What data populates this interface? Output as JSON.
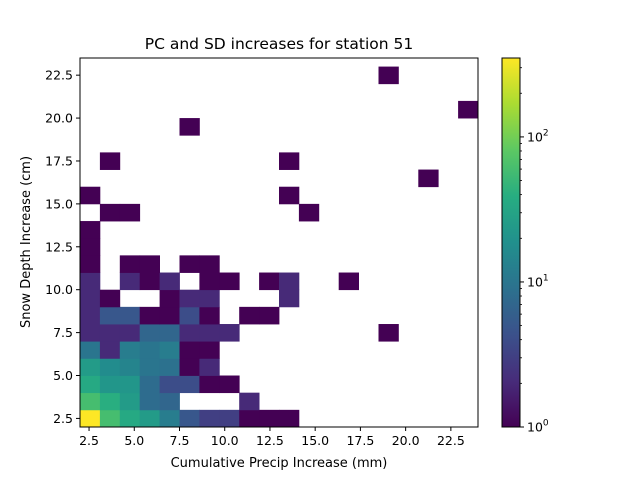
{
  "chart_data": {
    "type": "heatmap",
    "title": "PC and SD increases for station 51",
    "xlabel": "Cumulative Precip Increase (mm)",
    "ylabel": "Snow Depth Increase (cm)",
    "xlim": [
      2.0,
      24.0
    ],
    "ylim": [
      2.0,
      23.5
    ],
    "xticks": [
      "2.5",
      "5.0",
      "7.5",
      "10.0",
      "12.5",
      "15.0",
      "17.5",
      "20.0",
      "22.5"
    ],
    "yticks": [
      "2.5",
      "5.0",
      "7.5",
      "10.0",
      "12.5",
      "15.0",
      "17.5",
      "20.0",
      "22.5"
    ],
    "bin_width_x": 1.1,
    "bin_width_y": 1.0,
    "colorscale": "viridis",
    "color_scale_type": "log",
    "color_range": [
      1,
      350
    ],
    "colorbar_ticks": [
      {
        "value": 1,
        "label": "10",
        "exp": "0"
      },
      {
        "value": 10,
        "label": "10",
        "exp": "1"
      },
      {
        "value": 100,
        "label": "10",
        "exp": "2"
      }
    ],
    "bins": [
      [
        2.55,
        2.5,
        350
      ],
      [
        3.65,
        2.5,
        60
      ],
      [
        4.75,
        2.5,
        35
      ],
      [
        5.85,
        2.5,
        25
      ],
      [
        6.95,
        2.5,
        12
      ],
      [
        8.05,
        2.5,
        5
      ],
      [
        9.15,
        2.5,
        3
      ],
      [
        10.25,
        2.5,
        3
      ],
      [
        11.35,
        2.5,
        1
      ],
      [
        12.45,
        2.5,
        1
      ],
      [
        13.55,
        2.5,
        1
      ],
      [
        2.55,
        3.5,
        60
      ],
      [
        3.65,
        3.5,
        40
      ],
      [
        4.75,
        3.5,
        25
      ],
      [
        5.85,
        3.5,
        8
      ],
      [
        6.95,
        3.5,
        7
      ],
      [
        11.35,
        3.5,
        2
      ],
      [
        2.55,
        4.5,
        35
      ],
      [
        3.65,
        4.5,
        22
      ],
      [
        4.75,
        4.5,
        22
      ],
      [
        5.85,
        4.5,
        8
      ],
      [
        6.95,
        4.5,
        4
      ],
      [
        8.05,
        4.5,
        4
      ],
      [
        9.15,
        4.5,
        1
      ],
      [
        10.25,
        4.5,
        1
      ],
      [
        2.55,
        5.5,
        25
      ],
      [
        3.65,
        5.5,
        17
      ],
      [
        4.75,
        5.5,
        14
      ],
      [
        5.85,
        5.5,
        10
      ],
      [
        6.95,
        5.5,
        9
      ],
      [
        8.05,
        5.5,
        1
      ],
      [
        9.15,
        5.5,
        2
      ],
      [
        2.55,
        6.5,
        10
      ],
      [
        3.65,
        6.5,
        2
      ],
      [
        4.75,
        6.5,
        12
      ],
      [
        5.85,
        6.5,
        10
      ],
      [
        6.95,
        6.5,
        12
      ],
      [
        8.05,
        6.5,
        1
      ],
      [
        9.15,
        6.5,
        1
      ],
      [
        2.55,
        7.5,
        2
      ],
      [
        3.65,
        7.5,
        2
      ],
      [
        4.75,
        7.5,
        2
      ],
      [
        5.85,
        7.5,
        7
      ],
      [
        6.95,
        7.5,
        7
      ],
      [
        8.05,
        7.5,
        2
      ],
      [
        9.15,
        7.5,
        2
      ],
      [
        10.25,
        7.5,
        2
      ],
      [
        19.05,
        7.5,
        1
      ],
      [
        2.55,
        8.5,
        2
      ],
      [
        3.65,
        8.5,
        5
      ],
      [
        4.75,
        8.5,
        5
      ],
      [
        5.85,
        8.5,
        1
      ],
      [
        6.95,
        8.5,
        1
      ],
      [
        8.05,
        8.5,
        4
      ],
      [
        9.15,
        8.5,
        1
      ],
      [
        11.35,
        8.5,
        1
      ],
      [
        12.45,
        8.5,
        1
      ],
      [
        2.55,
        9.5,
        2
      ],
      [
        3.65,
        9.5,
        1
      ],
      [
        6.95,
        9.5,
        1
      ],
      [
        8.05,
        9.5,
        2
      ],
      [
        9.15,
        9.5,
        2
      ],
      [
        13.55,
        9.5,
        2
      ],
      [
        2.55,
        10.5,
        2
      ],
      [
        4.75,
        10.5,
        2
      ],
      [
        5.85,
        10.5,
        1
      ],
      [
        6.95,
        10.5,
        2
      ],
      [
        9.15,
        10.5,
        1
      ],
      [
        10.25,
        10.5,
        1
      ],
      [
        12.45,
        10.5,
        1
      ],
      [
        13.55,
        10.5,
        2
      ],
      [
        16.85,
        10.5,
        1
      ],
      [
        2.55,
        11.5,
        1
      ],
      [
        4.75,
        11.5,
        1
      ],
      [
        5.85,
        11.5,
        1
      ],
      [
        8.05,
        11.5,
        1
      ],
      [
        9.15,
        11.5,
        1
      ],
      [
        2.55,
        12.5,
        1
      ],
      [
        2.55,
        13.5,
        1
      ],
      [
        3.65,
        14.5,
        1
      ],
      [
        4.75,
        14.5,
        1
      ],
      [
        14.65,
        14.5,
        1
      ],
      [
        2.55,
        15.5,
        1
      ],
      [
        13.55,
        15.5,
        1
      ],
      [
        21.25,
        16.5,
        1
      ],
      [
        3.65,
        17.5,
        1
      ],
      [
        13.55,
        17.5,
        1
      ],
      [
        8.05,
        19.5,
        1
      ],
      [
        23.45,
        20.5,
        1
      ],
      [
        19.05,
        22.5,
        1
      ]
    ]
  }
}
